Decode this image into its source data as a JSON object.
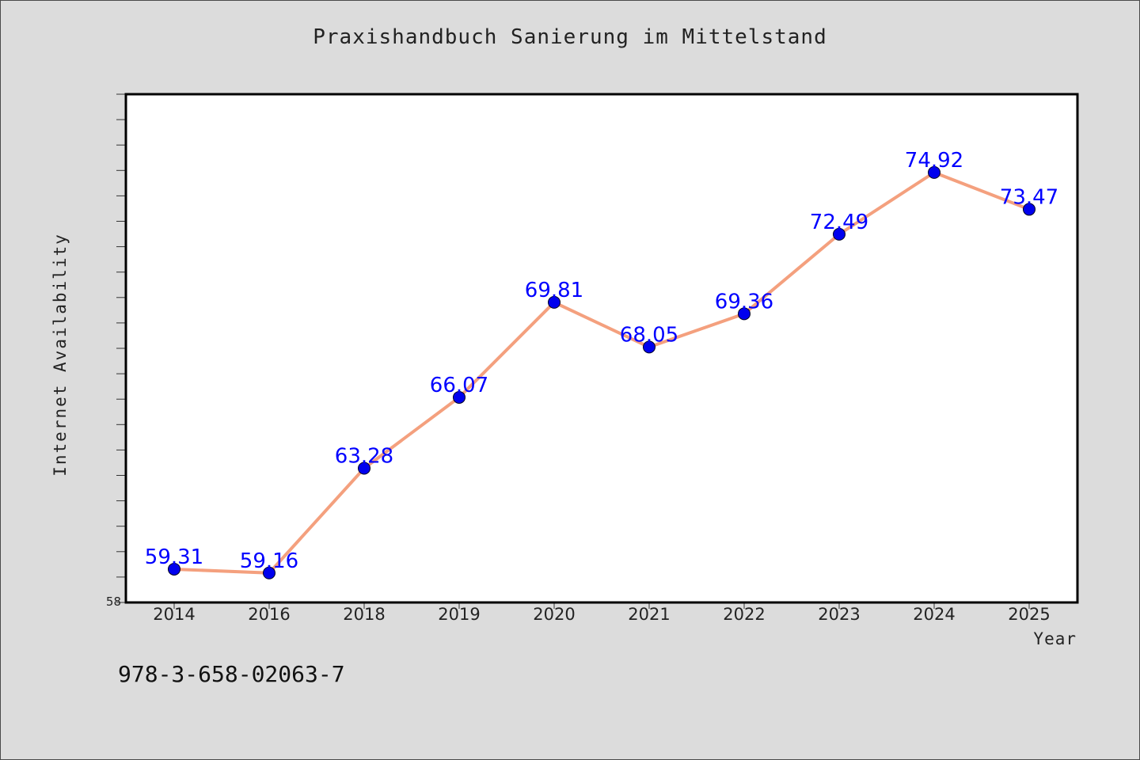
{
  "chart_data": {
    "type": "line",
    "title": "Praxishandbuch Sanierung im Mittelstand",
    "xlabel": "Year",
    "ylabel": "Internet Availability",
    "categories": [
      "2014",
      "2016",
      "2018",
      "2019",
      "2020",
      "2021",
      "2022",
      "2023",
      "2024",
      "2025"
    ],
    "series": [
      {
        "values": [
          59.31,
          59.16,
          63.28,
          66.07,
          69.81,
          68.05,
          69.36,
          72.49,
          74.92,
          73.47
        ],
        "labels": [
          "59.31",
          "59.16",
          "63.28",
          "66.07",
          "69.81",
          "68.05",
          "69.36",
          "72.49",
          "74.92",
          "73.47"
        ],
        "line_color": "#f4a07e",
        "marker_color": "#0000ee",
        "label_color": "#0000ff"
      }
    ],
    "ylim": [
      58,
      78
    ],
    "y_tick_labels": [
      "58"
    ],
    "grid": false
  },
  "footer": {
    "code": "978-3-658-02063-7"
  },
  "colors": {
    "background": "#dcdcdc",
    "plot_background": "#ffffff"
  }
}
